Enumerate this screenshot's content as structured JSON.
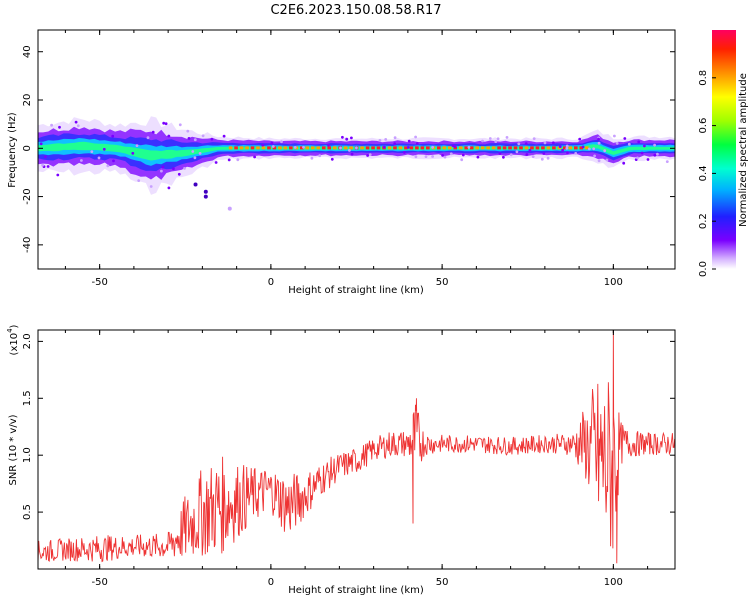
{
  "figure_title": "C2E6.2023.150.08.58.R17",
  "chart_data": [
    {
      "type": "heatmap",
      "title": "C2E6.2023.150.08.58.R17",
      "xlabel": "Height of straight line (km)",
      "ylabel": "Frequency (Hz)",
      "xlim": [
        -68,
        118
      ],
      "ylim": [
        -50,
        49
      ],
      "xticks": [
        -50,
        0,
        50,
        100
      ],
      "xtick_labels": [
        "-50",
        "0",
        "50",
        "100"
      ],
      "yticks": [
        -40,
        -20,
        0,
        20,
        40
      ],
      "ytick_labels": [
        "-40",
        "-20",
        "0",
        "20",
        "40"
      ],
      "description": "Spectral band concentrated near 0 Hz; broader spread (about -10 to +8 Hz) from -68 to -20 km, narrow band near 0 Hz from -15 to 118 km with strongest normalized amplitude between 0 and 90 km",
      "band_profile": {
        "x": [
          -68,
          -55,
          -45,
          -35,
          -25,
          -15,
          0,
          25,
          50,
          75,
          90,
          95,
          100,
          105,
          118
        ],
        "center_hz": [
          0,
          1,
          0,
          -3,
          -2,
          0,
          0,
          0,
          0,
          0,
          0,
          1,
          -2,
          0,
          0
        ],
        "half_width_hz": [
          6,
          7,
          6,
          9,
          6,
          3,
          2.5,
          2.5,
          2.5,
          2.5,
          2.5,
          4,
          4,
          3,
          3
        ]
      },
      "colorbar": {
        "label": "Normalized spectral amplitude",
        "range": [
          0,
          1
        ],
        "ticks": [
          0.0,
          0.2,
          0.4,
          0.6,
          0.8
        ],
        "tick_labels": [
          "0.0",
          "0.2",
          "0.4",
          "0.6",
          "0.8"
        ]
      }
    },
    {
      "type": "line",
      "xlabel": "Height of straight line (km)",
      "ylabel": "SNR (10 * v/v)",
      "y_multiplier_label": "(x10",
      "y_multiplier_exp": "4",
      "color": "#ee3333",
      "xlim": [
        -68,
        118
      ],
      "ylim": [
        0,
        2.1
      ],
      "xticks": [
        -50,
        0,
        50,
        100
      ],
      "xtick_labels": [
        "-50",
        "0",
        "50",
        "100"
      ],
      "yticks": [
        0.5,
        1.0,
        1.5,
        2.0
      ],
      "ytick_labels": [
        "0.5",
        "1.0",
        "1.5",
        "2.0"
      ],
      "series": [
        {
          "name": "SNR",
          "x": [
            -68,
            -60,
            -50,
            -40,
            -30,
            -25,
            -20,
            -15,
            -10,
            -5,
            0,
            5,
            10,
            15,
            20,
            25,
            30,
            35,
            40,
            42,
            45,
            50,
            60,
            70,
            80,
            88,
            92,
            95,
            98,
            100,
            102,
            105,
            110,
            118
          ],
          "mean": [
            0.15,
            0.17,
            0.18,
            0.2,
            0.2,
            0.35,
            0.5,
            0.55,
            0.6,
            0.65,
            0.7,
            0.55,
            0.65,
            0.8,
            0.9,
            0.95,
            1.05,
            1.1,
            1.1,
            1.15,
            1.1,
            1.1,
            1.1,
            1.08,
            1.1,
            1.1,
            1.1,
            1.0,
            0.9,
            0.9,
            1.1,
            1.1,
            1.1,
            1.1
          ],
          "spread": [
            0.1,
            0.1,
            0.12,
            0.1,
            0.12,
            0.3,
            0.4,
            0.45,
            0.35,
            0.25,
            0.2,
            0.3,
            0.2,
            0.15,
            0.12,
            0.12,
            0.1,
            0.12,
            0.12,
            0.35,
            0.1,
            0.08,
            0.08,
            0.08,
            0.08,
            0.1,
            0.35,
            0.7,
            0.8,
            0.9,
            0.2,
            0.12,
            0.1,
            0.1
          ]
        }
      ],
      "annotations": [
        {
          "x": 41.5,
          "y": 0.4,
          "note": "deep dip"
        },
        {
          "x": 42.5,
          "y": 1.5,
          "note": "spike"
        },
        {
          "x": 100,
          "y": 2.1,
          "note": "max spike"
        },
        {
          "x": 101,
          "y": 0.05,
          "note": "min dip"
        }
      ]
    }
  ]
}
